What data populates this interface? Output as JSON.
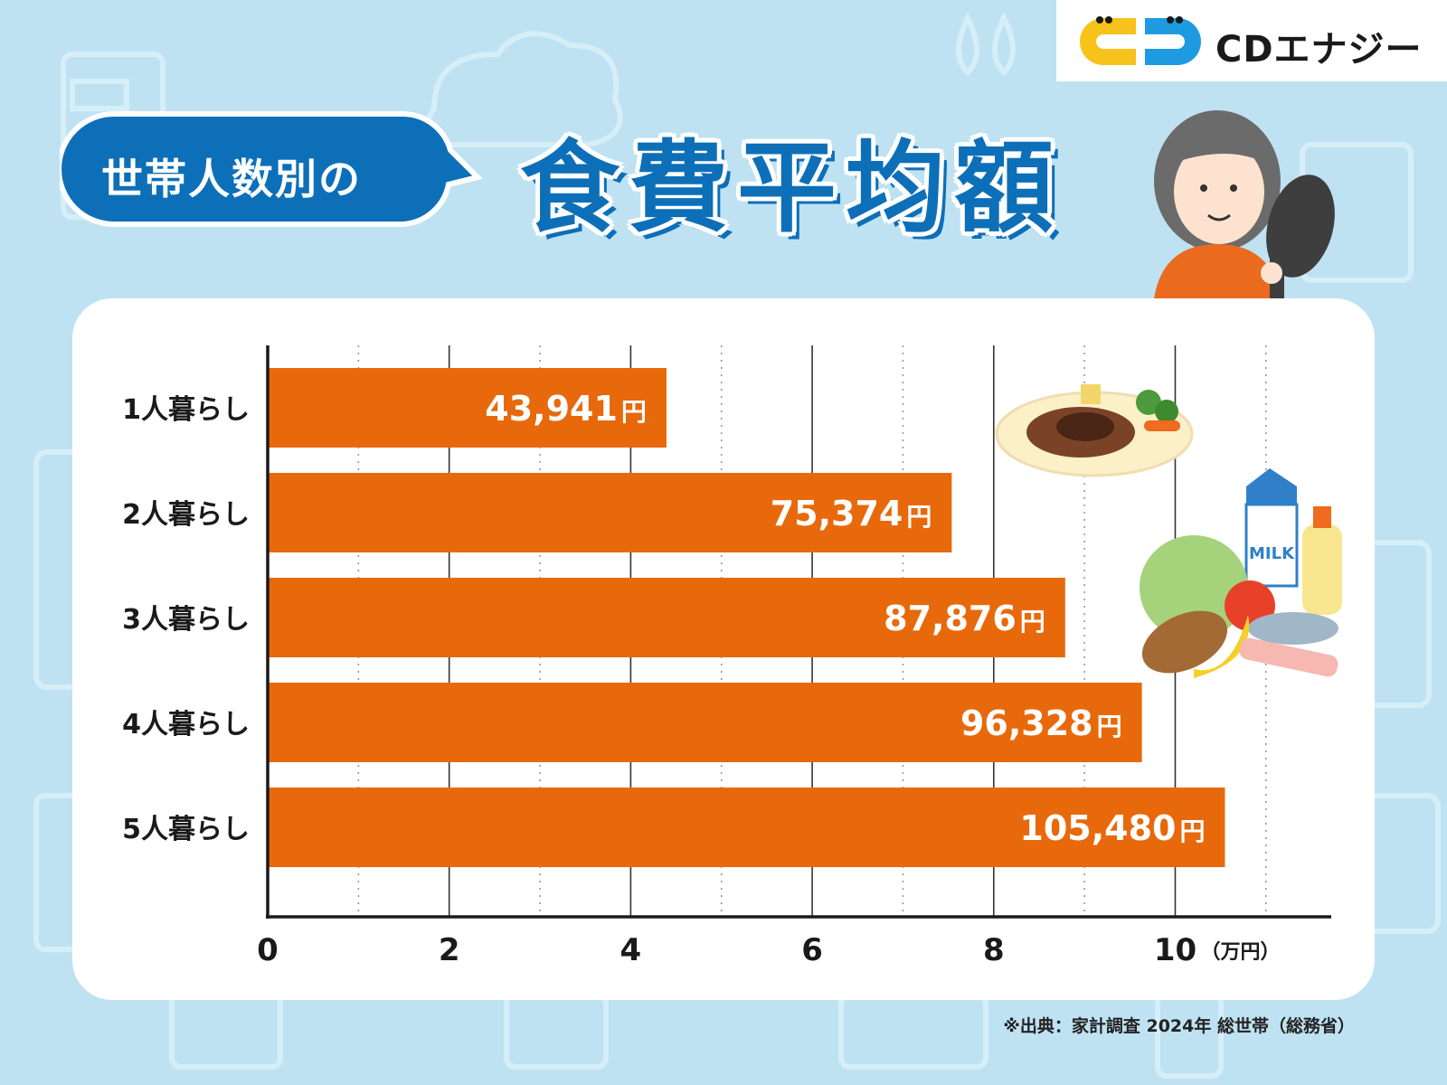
{
  "brand": {
    "name": "CDエナジー"
  },
  "header": {
    "bubble_label": "世帯人数別の",
    "title": "食費平均額"
  },
  "chart_data": {
    "type": "bar",
    "orientation": "horizontal",
    "categories": [
      "1人暮らし",
      "2人暮らし",
      "3人暮らし",
      "4人暮らし",
      "5人暮らし"
    ],
    "values": [
      43941,
      75374,
      87876,
      96328,
      105480
    ],
    "value_labels": [
      "43,941",
      "75,374",
      "87,876",
      "96,328",
      "105,480"
    ],
    "value_suffix": "円",
    "x_ticks": [
      "0",
      "2",
      "4",
      "6",
      "8",
      "10"
    ],
    "x_unit": "（万円）",
    "xlim": [
      0,
      115000
    ],
    "grid": "vertical, dotted at odd values",
    "bar_color": "#e8690b"
  },
  "source_note": "※出典：家計調査 2024年 総世帯（総務省）",
  "colors": {
    "background": "#bfe2f2",
    "accent_blue": "#0d6fb8",
    "bar": "#e8690b",
    "logo_yellow": "#f7c21a"
  },
  "icons": [
    "steak-plate-icon",
    "groceries-icon",
    "cook-woman-illustration",
    "brand-logo-mark"
  ]
}
